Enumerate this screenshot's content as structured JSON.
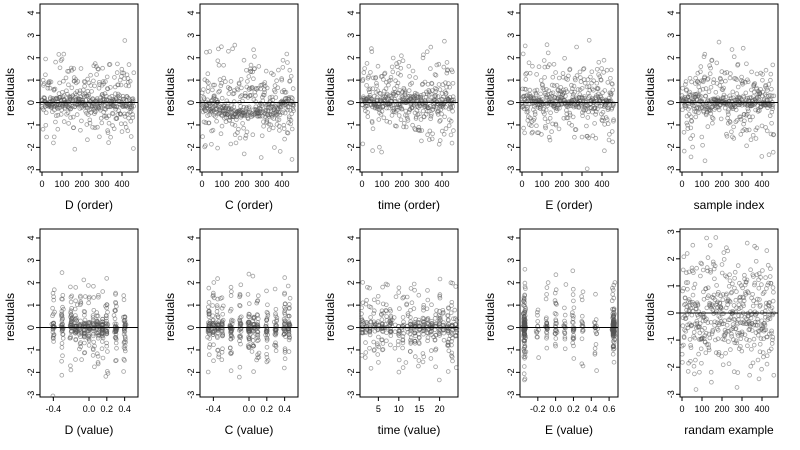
{
  "chart_data": [
    {
      "type": "scatter",
      "xlabel": "D (order)",
      "ylabel": "residuals",
      "xticks": [
        "0",
        "100",
        "200",
        "300",
        "400"
      ],
      "xlim": [
        -10,
        480
      ],
      "yticks": [
        "-3",
        "-2",
        "-1",
        "0",
        "1",
        "2",
        "3",
        "4"
      ],
      "ylim": [
        -3.1,
        4.4
      ],
      "reference_line": 0,
      "pattern": "order",
      "seed": 11,
      "n": 460
    },
    {
      "type": "scatter",
      "xlabel": "C (order)",
      "ylabel": "residuals",
      "xticks": [
        "0",
        "100",
        "200",
        "300",
        "400"
      ],
      "xlim": [
        -10,
        480
      ],
      "yticks": [
        "-3",
        "-2",
        "-1",
        "0",
        "1",
        "2",
        "3",
        "4"
      ],
      "ylim": [
        -3.1,
        4.4
      ],
      "reference_line": 0,
      "pattern": "order_trend",
      "seed": 23,
      "n": 460
    },
    {
      "type": "scatter",
      "xlabel": "time (order)",
      "ylabel": "residuals",
      "xticks": [
        "0",
        "100",
        "200",
        "300",
        "400"
      ],
      "xlim": [
        -10,
        480
      ],
      "yticks": [
        "-3",
        "-2",
        "-1",
        "0",
        "1",
        "2",
        "3",
        "4"
      ],
      "ylim": [
        -3.1,
        4.4
      ],
      "reference_line": 0,
      "pattern": "order",
      "seed": 37,
      "n": 460
    },
    {
      "type": "scatter",
      "xlabel": "E (order)",
      "ylabel": "residuals",
      "xticks": [
        "0",
        "100",
        "200",
        "300",
        "400"
      ],
      "xlim": [
        -10,
        480
      ],
      "yticks": [
        "-3",
        "-2",
        "-1",
        "0",
        "1",
        "2",
        "3",
        "4"
      ],
      "ylim": [
        -3.1,
        4.4
      ],
      "reference_line": 0,
      "pattern": "order",
      "seed": 41,
      "n": 460
    },
    {
      "type": "scatter",
      "xlabel": "sample index",
      "ylabel": "residuals",
      "xticks": [
        "0",
        "100",
        "200",
        "300",
        "400"
      ],
      "xlim": [
        -10,
        480
      ],
      "yticks": [
        "-3",
        "-2",
        "-1",
        "0",
        "1",
        "2",
        "3",
        "4"
      ],
      "ylim": [
        -3.1,
        4.4
      ],
      "reference_line": 0,
      "pattern": "order",
      "seed": 53,
      "n": 460
    },
    {
      "type": "scatter",
      "xlabel": "D (value)",
      "ylabel": "residuals",
      "xticks": [
        "-0.4",
        "0.0",
        "0.2",
        "0.4"
      ],
      "xtick_values": [
        -0.4,
        0.0,
        0.2,
        0.4
      ],
      "xlim": [
        -0.55,
        0.55
      ],
      "yticks": [
        "-3",
        "-2",
        "-1",
        "0",
        "1",
        "2",
        "3",
        "4"
      ],
      "ylim": [
        -3.1,
        4.4
      ],
      "reference_line": 0,
      "pattern": "value_clusters",
      "clusters": [
        -0.4,
        -0.3,
        -0.2,
        -0.15,
        -0.1,
        -0.05,
        0.0,
        0.05,
        0.1,
        0.15,
        0.2,
        0.3,
        0.4
      ],
      "seed": 61,
      "n": 420
    },
    {
      "type": "scatter",
      "xlabel": "C (value)",
      "ylabel": "residuals",
      "xticks": [
        "-0.4",
        "0.0",
        "0.2",
        "0.4"
      ],
      "xtick_values": [
        -0.4,
        0.0,
        0.2,
        0.4
      ],
      "xlim": [
        -0.55,
        0.55
      ],
      "yticks": [
        "-3",
        "-2",
        "-1",
        "0",
        "1",
        "2",
        "3",
        "4"
      ],
      "ylim": [
        -3.1,
        4.4
      ],
      "reference_line": 0,
      "pattern": "value_clusters_c",
      "clusters": [
        -0.45,
        -0.4,
        -0.35,
        -0.3,
        -0.2,
        -0.1,
        0.0,
        0.05,
        0.1,
        0.2,
        0.3,
        0.4,
        0.45
      ],
      "seed": 73,
      "n": 420
    },
    {
      "type": "scatter",
      "xlabel": "time (value)",
      "ylabel": "residuals",
      "xticks": [
        "5",
        "10",
        "15",
        "20"
      ],
      "xtick_values": [
        5,
        10,
        15,
        20
      ],
      "xlim": [
        0.5,
        24.5
      ],
      "yticks": [
        "-3",
        "-2",
        "-1",
        "0",
        "1",
        "2",
        "3",
        "4"
      ],
      "ylim": [
        -3.1,
        4.4
      ],
      "reference_line": 0,
      "pattern": "value_clusters",
      "clusters": [
        1,
        2,
        3,
        4,
        5,
        6,
        7,
        8,
        9,
        10,
        11,
        12,
        13,
        14,
        15,
        16,
        17,
        18,
        19,
        20,
        21,
        22,
        23,
        24
      ],
      "seed": 89,
      "n": 420
    },
    {
      "type": "scatter",
      "xlabel": "E (value)",
      "ylabel": "residuals",
      "xticks": [
        "-0.2",
        "0.0",
        "0.2",
        "0.4",
        "0.6"
      ],
      "xtick_values": [
        -0.2,
        0.0,
        0.2,
        0.4,
        0.6
      ],
      "xlim": [
        -0.4,
        0.7
      ],
      "yticks": [
        "-3",
        "-2",
        "-1",
        "0",
        "1",
        "2",
        "3",
        "4"
      ],
      "ylim": [
        -3.1,
        4.4
      ],
      "reference_line": 0,
      "pattern": "value_edges",
      "clusters": [
        -0.35,
        -0.2,
        -0.1,
        0.0,
        0.1,
        0.2,
        0.3,
        0.45,
        0.65
      ],
      "seed": 97,
      "n": 420
    },
    {
      "type": "scatter",
      "xlabel": "randam example",
      "ylabel": "residuals",
      "xticks": [
        "0",
        "100",
        "200",
        "300",
        "400"
      ],
      "xlim": [
        -10,
        480
      ],
      "yticks": [
        "-3",
        "-2",
        "-1",
        "0",
        "1",
        "2",
        "3"
      ],
      "ylim": [
        -3.1,
        3.1
      ],
      "reference_line": 0,
      "pattern": "random",
      "seed": 103,
      "n": 460
    }
  ]
}
